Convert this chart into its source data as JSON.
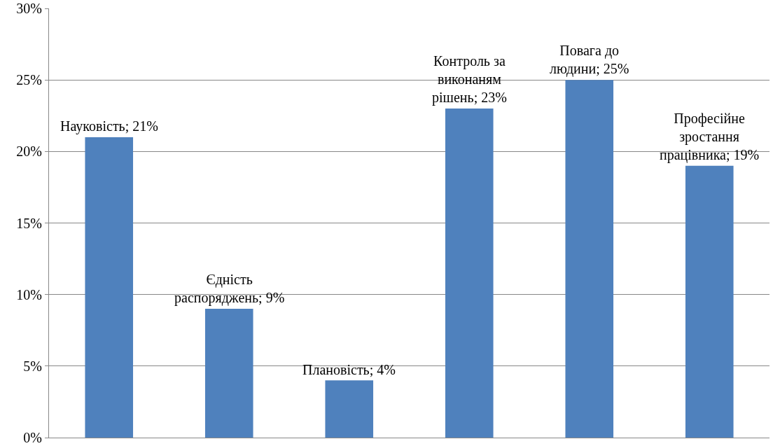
{
  "chart_data": {
    "type": "bar",
    "categories": [
      null,
      null,
      null,
      null,
      null,
      null
    ],
    "values": [
      21,
      9,
      4,
      23,
      25,
      19
    ],
    "value_labels": [
      "Науковість; 21%",
      "Єдність распоряджень; 9%",
      "Плановість; 4%",
      "Контроль за виконаням рішень; 23%",
      "Повага до людини; 25%",
      "Професійне зростання працівника; 19%"
    ],
    "color": "#4f81bd",
    "ylim": [
      0,
      30
    ],
    "yticks": [
      {
        "value": 0,
        "label": "0%"
      },
      {
        "value": 5,
        "label": "5%"
      },
      {
        "value": 10,
        "label": "10%"
      },
      {
        "value": 15,
        "label": "15%"
      },
      {
        "value": 20,
        "label": "20%"
      },
      {
        "value": 25,
        "label": "25%"
      },
      {
        "value": 30,
        "label": "30%"
      }
    ],
    "grid": "y",
    "tick_labels": "y",
    "legend": false
  }
}
